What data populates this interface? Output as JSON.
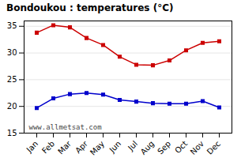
{
  "chart_data": {
    "type": "line",
    "title": "Bondoukou : temperatures (°C)",
    "categories": [
      "Jan",
      "Feb",
      "Mar",
      "Apr",
      "May",
      "Jun",
      "Jul",
      "Aug",
      "Sep",
      "Oct",
      "Nov",
      "Dec"
    ],
    "series": [
      {
        "color": "#cc0000",
        "marker": "square",
        "values": [
          33.8,
          35.2,
          34.8,
          32.8,
          31.5,
          29.3,
          27.8,
          27.7,
          28.6,
          30.5,
          31.9,
          32.2
        ]
      },
      {
        "color": "#0000cc",
        "marker": "square",
        "values": [
          19.7,
          21.5,
          22.3,
          22.5,
          22.2,
          21.2,
          20.9,
          20.6,
          20.5,
          20.5,
          21.0,
          19.8
        ]
      }
    ],
    "ylim": [
      15,
      36
    ],
    "yticks": [
      15,
      20,
      25,
      30,
      35
    ],
    "grid": true,
    "annotations": [
      "www.allmetsat.com"
    ]
  }
}
